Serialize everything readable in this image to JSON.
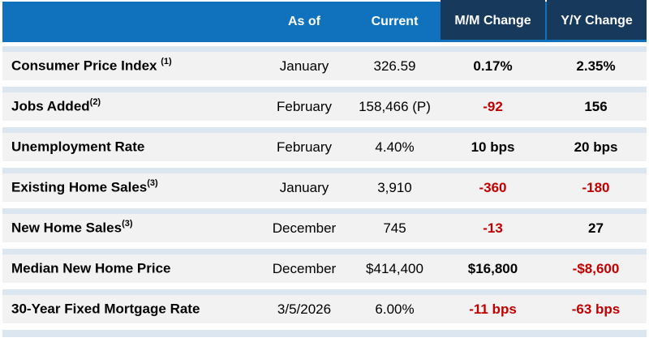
{
  "header": {
    "as_of": "As of",
    "current": "Current",
    "mm": "M/M Change",
    "yy": "Y/Y Change"
  },
  "colors": {
    "header_blue": "#1072bc",
    "header_navy": "#17395c",
    "row_stripe_blue": "#dce6f1",
    "row_background": "#f2f2f2",
    "negative_red": "#c00000",
    "text_black": "#000000"
  },
  "chart_data": {
    "type": "table",
    "columns": [
      "",
      "As of",
      "Current",
      "M/M Change",
      "Y/Y Change"
    ],
    "rows": [
      {
        "label": "Consumer Price Index ",
        "sup": "(1)",
        "as_of": "January",
        "current": "326.59",
        "mm": "0.17%",
        "yy": "2.35%",
        "mm_color": "#000000",
        "yy_color": "#000000"
      },
      {
        "label": "Jobs Added",
        "sup": "(2)",
        "as_of": "February",
        "current": "158,466 (P)",
        "mm": "-92",
        "yy": "156",
        "mm_color": "#c00000",
        "yy_color": "#000000"
      },
      {
        "label": "Unemployment Rate",
        "sup": "",
        "as_of": "February",
        "current": "4.40%",
        "mm": "10 bps",
        "yy": "20 bps",
        "mm_color": "#000000",
        "yy_color": "#000000"
      },
      {
        "label": "Existing Home Sales",
        "sup": "(3)",
        "as_of": "January",
        "current": "3,910",
        "mm": "-360",
        "yy": "-180",
        "mm_color": "#c00000",
        "yy_color": "#c00000"
      },
      {
        "label": "New Home Sales",
        "sup": "(3)",
        "as_of": "December",
        "current": "745",
        "mm": "-13",
        "yy": "27",
        "mm_color": "#c00000",
        "yy_color": "#000000"
      },
      {
        "label": "Median New Home Price",
        "sup": "",
        "as_of": "December",
        "current": "$414,400",
        "mm": "$16,800",
        "yy": "-$8,600",
        "mm_color": "#000000",
        "yy_color": "#c00000"
      },
      {
        "label": "30-Year Fixed Mortgage Rate",
        "sup": "",
        "as_of": "3/5/2026",
        "current": "6.00%",
        "mm": "-11 bps",
        "yy": "-63 bps",
        "mm_color": "#c00000",
        "yy_color": "#c00000"
      }
    ]
  }
}
